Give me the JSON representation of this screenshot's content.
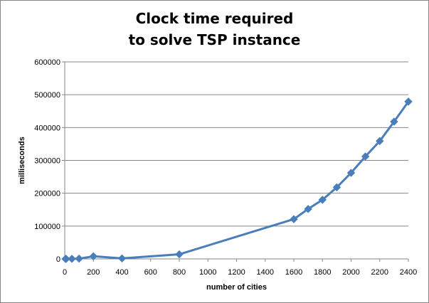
{
  "chart_data": {
    "type": "line",
    "title_lines": [
      "Clock time required",
      "to solve TSP instance"
    ],
    "xlabel": "number of cities",
    "ylabel": "milliseconds",
    "xlim": [
      0,
      2400
    ],
    "ylim": [
      0,
      600000
    ],
    "x_ticks": [
      0,
      200,
      400,
      600,
      800,
      1000,
      1200,
      1400,
      1600,
      1800,
      2000,
      2200,
      2400
    ],
    "y_ticks": [
      0,
      100000,
      200000,
      300000,
      400000,
      500000,
      600000
    ],
    "grid": "horizontal",
    "series": [
      {
        "color": "#4a7ebb",
        "marker": "diamond",
        "x": [
          5,
          10,
          50,
          100,
          200,
          400,
          800,
          1600,
          1700,
          1800,
          1900,
          2000,
          2100,
          2200,
          2300,
          2400
        ],
        "y": [
          0,
          100,
          300,
          800,
          8000,
          1500,
          14000,
          121000,
          152000,
          180000,
          218000,
          262000,
          312000,
          359000,
          418000,
          479000
        ]
      }
    ]
  }
}
